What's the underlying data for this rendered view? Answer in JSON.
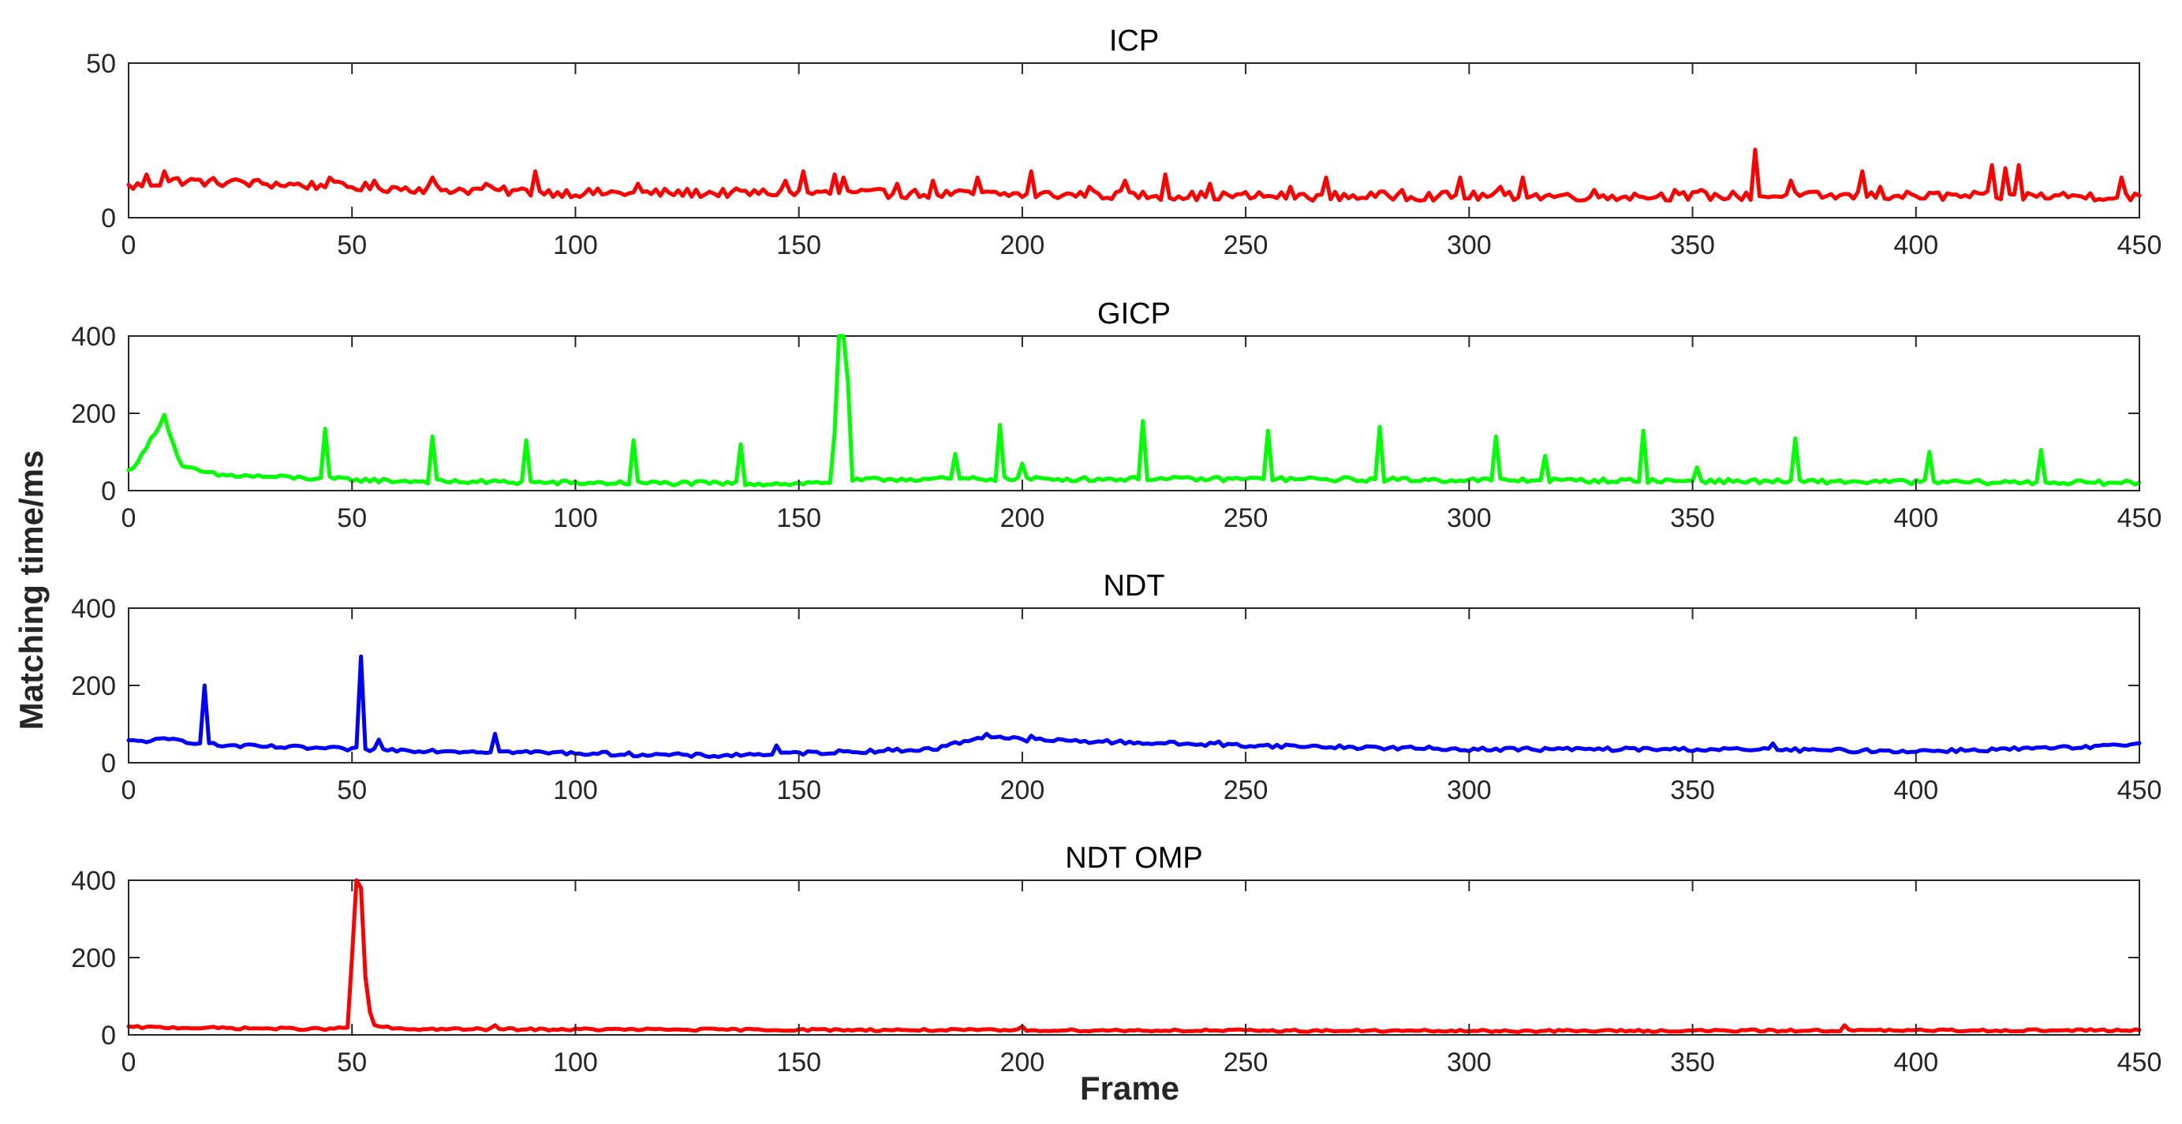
{
  "figure": {
    "ylabel": "Matching time/ms",
    "xlabel": "Frame"
  },
  "chart_data": [
    {
      "type": "line",
      "title": "ICP",
      "color": "#ff0000",
      "xlim": [
        0,
        450
      ],
      "ylim": [
        0,
        50
      ],
      "xticks": [
        0,
        50,
        100,
        150,
        200,
        250,
        300,
        350,
        400,
        450
      ],
      "yticks": [
        0,
        50
      ],
      "base": 9,
      "noise": 1.5,
      "baseline_points": [
        [
          0,
          10
        ],
        [
          10,
          12
        ],
        [
          50,
          10
        ],
        [
          100,
          8
        ],
        [
          150,
          8
        ],
        [
          250,
          7
        ],
        [
          350,
          7
        ],
        [
          450,
          7
        ]
      ],
      "spikes": [
        [
          4,
          14
        ],
        [
          8,
          15
        ],
        [
          18,
          12
        ],
        [
          25,
          12
        ],
        [
          30,
          11
        ],
        [
          45,
          13
        ],
        [
          55,
          12
        ],
        [
          68,
          13
        ],
        [
          80,
          11
        ],
        [
          91,
          15
        ],
        [
          114,
          11
        ],
        [
          147,
          12
        ],
        [
          151,
          15
        ],
        [
          158,
          14
        ],
        [
          160,
          13
        ],
        [
          172,
          11
        ],
        [
          180,
          12
        ],
        [
          190,
          13
        ],
        [
          202,
          15
        ],
        [
          215,
          10
        ],
        [
          223,
          12
        ],
        [
          232,
          14
        ],
        [
          242,
          11
        ],
        [
          260,
          10
        ],
        [
          268,
          13
        ],
        [
          285,
          9
        ],
        [
          298,
          13
        ],
        [
          307,
          10
        ],
        [
          312,
          13
        ],
        [
          328,
          9
        ],
        [
          346,
          9
        ],
        [
          352,
          9
        ],
        [
          364,
          22
        ],
        [
          372,
          12
        ],
        [
          388,
          15
        ],
        [
          392,
          10
        ],
        [
          417,
          17
        ],
        [
          420,
          16
        ],
        [
          423,
          17
        ],
        [
          446,
          13
        ]
      ]
    },
    {
      "type": "line",
      "title": "GICP",
      "color": "#00ff00",
      "xlim": [
        0,
        450
      ],
      "ylim": [
        0,
        400
      ],
      "xticks": [
        0,
        50,
        100,
        150,
        200,
        250,
        300,
        350,
        400,
        450
      ],
      "yticks": [
        0,
        200,
        400
      ],
      "base": 25,
      "noise": 6,
      "baseline_points": [
        [
          0,
          50
        ],
        [
          3,
          90
        ],
        [
          8,
          195
        ],
        [
          10,
          120
        ],
        [
          12,
          60
        ],
        [
          20,
          40
        ],
        [
          60,
          25
        ],
        [
          100,
          20
        ],
        [
          150,
          18
        ],
        [
          170,
          30
        ],
        [
          250,
          30
        ],
        [
          350,
          25
        ],
        [
          450,
          20
        ]
      ],
      "spikes": [
        [
          44,
          160
        ],
        [
          68,
          140
        ],
        [
          89,
          130
        ],
        [
          113,
          130
        ],
        [
          137,
          120
        ],
        [
          158,
          150
        ],
        [
          159,
          400
        ],
        [
          160,
          400
        ],
        [
          161,
          280
        ],
        [
          185,
          95
        ],
        [
          195,
          170
        ],
        [
          200,
          70
        ],
        [
          227,
          180
        ],
        [
          255,
          155
        ],
        [
          280,
          165
        ],
        [
          306,
          140
        ],
        [
          317,
          90
        ],
        [
          339,
          155
        ],
        [
          351,
          60
        ],
        [
          373,
          135
        ],
        [
          403,
          100
        ],
        [
          428,
          105
        ]
      ]
    },
    {
      "type": "line",
      "title": "NDT",
      "color": "#0000ff",
      "xlim": [
        0,
        450
      ],
      "ylim": [
        0,
        400
      ],
      "xticks": [
        0,
        50,
        100,
        150,
        200,
        250,
        300,
        350,
        400,
        450
      ],
      "yticks": [
        0,
        200,
        400
      ],
      "base": 40,
      "noise": 5,
      "baseline_points": [
        [
          0,
          55
        ],
        [
          10,
          60
        ],
        [
          20,
          45
        ],
        [
          50,
          35
        ],
        [
          100,
          25
        ],
        [
          130,
          18
        ],
        [
          150,
          25
        ],
        [
          180,
          35
        ],
        [
          192,
          70
        ],
        [
          200,
          60
        ],
        [
          250,
          45
        ],
        [
          300,
          35
        ],
        [
          350,
          35
        ],
        [
          400,
          30
        ],
        [
          440,
          40
        ],
        [
          450,
          50
        ]
      ],
      "spikes": [
        [
          17,
          200
        ],
        [
          52,
          275
        ],
        [
          56,
          60
        ],
        [
          82,
          75
        ],
        [
          145,
          45
        ],
        [
          192,
          75
        ],
        [
          202,
          70
        ],
        [
          244,
          55
        ],
        [
          368,
          50
        ]
      ]
    },
    {
      "type": "line",
      "title": "NDT OMP",
      "color": "#ff0000",
      "xlim": [
        0,
        450
      ],
      "ylim": [
        0,
        400
      ],
      "xticks": [
        0,
        50,
        100,
        150,
        200,
        250,
        300,
        350,
        400,
        450
      ],
      "yticks": [
        0,
        200,
        400
      ],
      "base": 15,
      "noise": 3,
      "baseline_points": [
        [
          0,
          20
        ],
        [
          45,
          15
        ],
        [
          55,
          25
        ],
        [
          60,
          15
        ],
        [
          200,
          12
        ],
        [
          300,
          10
        ],
        [
          450,
          12
        ]
      ],
      "spikes": [
        [
          50,
          200
        ],
        [
          51,
          400
        ],
        [
          52,
          380
        ],
        [
          53,
          150
        ],
        [
          54,
          60
        ],
        [
          82,
          25
        ],
        [
          200,
          22
        ],
        [
          384,
          25
        ]
      ]
    }
  ]
}
